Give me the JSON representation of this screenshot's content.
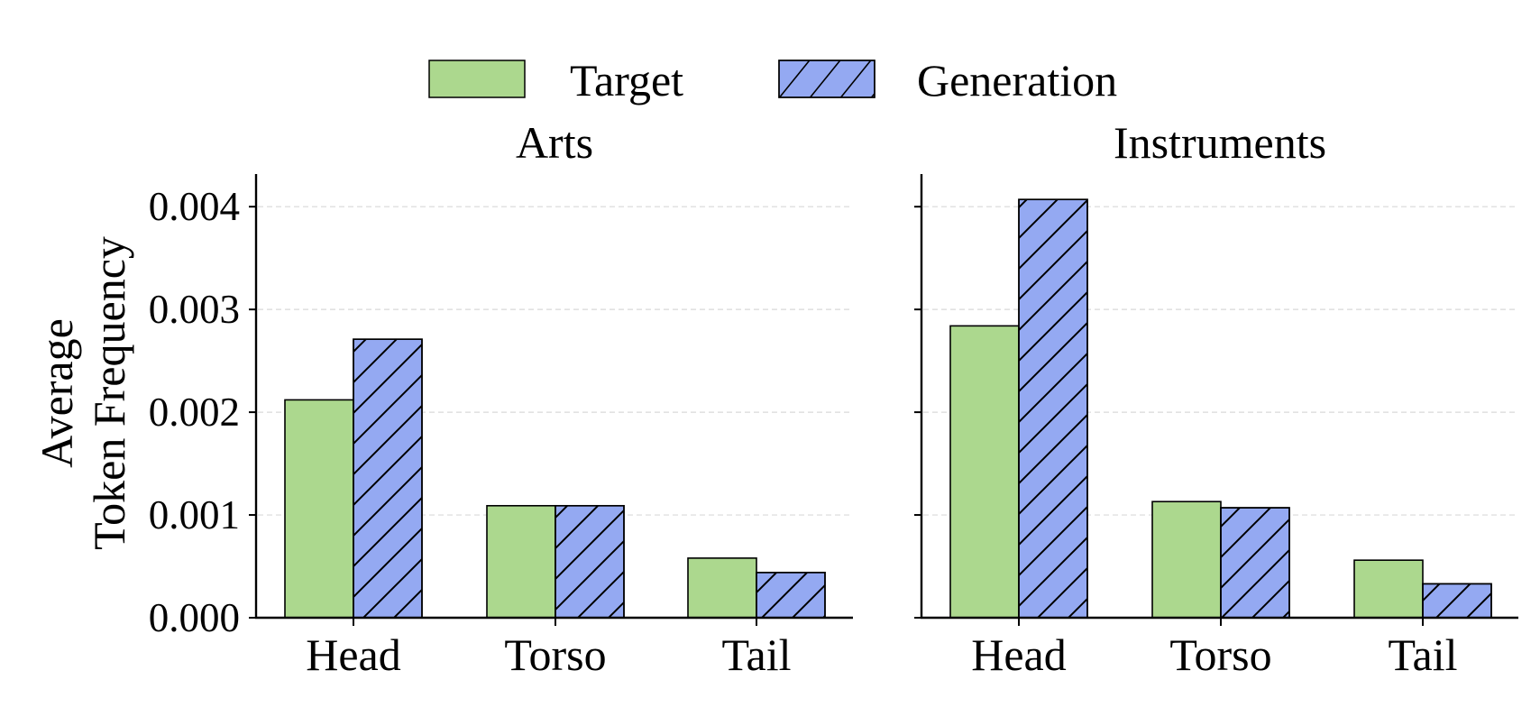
{
  "legend": {
    "items": [
      {
        "label": "Target",
        "color": "#acd88e",
        "hatch": false
      },
      {
        "label": "Generation",
        "color": "#94a9f2",
        "hatch": true
      }
    ]
  },
  "shared_ylabel_lines": [
    "Average",
    "Token Frequency"
  ],
  "chart_data": [
    {
      "type": "bar",
      "title": "Arts",
      "categories": [
        "Head",
        "Torso",
        "Tail"
      ],
      "series": [
        {
          "name": "Target",
          "values": [
            0.00212,
            0.00109,
            0.00058
          ]
        },
        {
          "name": "Generation",
          "values": [
            0.00271,
            0.00109,
            0.00044
          ]
        }
      ],
      "ylim": [
        0,
        0.0043
      ],
      "yticks": [
        0,
        0.001,
        0.002,
        0.003,
        0.004
      ],
      "ytick_labels": [
        "0.000",
        "0.001",
        "0.002",
        "0.003",
        "0.004"
      ],
      "grid": "y-dashed",
      "legend": "top-center"
    },
    {
      "type": "bar",
      "title": "Instruments",
      "categories": [
        "Head",
        "Torso",
        "Tail"
      ],
      "series": [
        {
          "name": "Target",
          "values": [
            0.00284,
            0.00113,
            0.00056
          ]
        },
        {
          "name": "Generation",
          "values": [
            0.00407,
            0.00107,
            0.00033
          ]
        }
      ],
      "ylim": [
        0,
        0.0043
      ],
      "yticks": [
        0,
        0.001,
        0.002,
        0.003,
        0.004
      ],
      "ytick_labels": [],
      "grid": "y-dashed",
      "legend": "top-center"
    }
  ]
}
